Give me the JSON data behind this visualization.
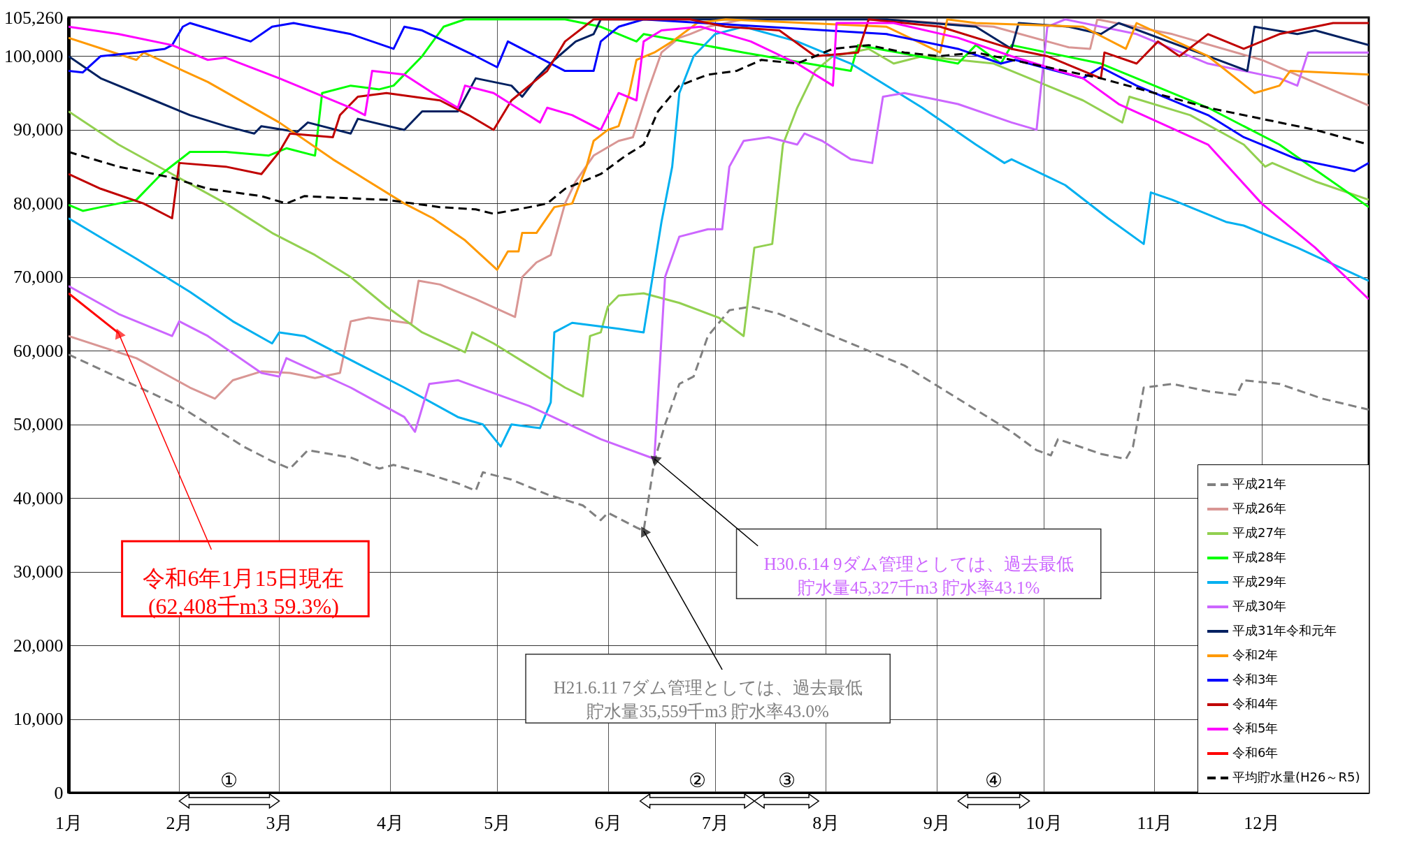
{
  "chart_data": {
    "type": "line",
    "xlim": [
      "--01-01",
      "--12-31"
    ],
    "xticks": [
      {
        "value": "--01-01",
        "label": "1月"
      },
      {
        "value": "--02-01",
        "label": "2月"
      },
      {
        "value": "--03-01",
        "label": "3月"
      },
      {
        "value": "--04-01",
        "label": "4月"
      },
      {
        "value": "--05-01",
        "label": "5月"
      },
      {
        "value": "--06-01",
        "label": "6月"
      },
      {
        "value": "--07-01",
        "label": "7月"
      },
      {
        "value": "--08-01",
        "label": "8月"
      },
      {
        "value": "--09-01",
        "label": "9月"
      },
      {
        "value": "--10-01",
        "label": "10月"
      },
      {
        "value": "--11-01",
        "label": "11月"
      },
      {
        "value": "--12-01",
        "label": "12月"
      }
    ],
    "ylim": [
      0,
      105260
    ],
    "yticks": [
      0,
      {
        "value": 10000,
        "label": "10,000"
      },
      {
        "value": 20000,
        "label": "20,000"
      },
      {
        "value": 30000,
        "label": "30,000"
      },
      {
        "value": 40000,
        "label": "40,000"
      },
      {
        "value": 50000,
        "label": "50,000"
      },
      {
        "value": 60000,
        "label": "60,000"
      },
      {
        "value": 70000,
        "label": "70,000"
      },
      {
        "value": 80000,
        "label": "80,000"
      },
      {
        "value": 90000,
        "label": "90,000"
      },
      {
        "value": 100000,
        "label": "100,000"
      },
      {
        "value": 105260,
        "label": "105,260"
      }
    ],
    "grid": true,
    "legend": "bottom right",
    "series": [
      {
        "name": "平成21年",
        "color": "#808080",
        "line_style": "dashed",
        "x": [
          "--01-01",
          "--02-01",
          "--02-19",
          "--02-27",
          "--03-04",
          "--03-09",
          "--03-21",
          "--03-29",
          "--04-02",
          "--04-10",
          "--04-20",
          "--04-25",
          "--04-27",
          "--05-05",
          "--05-15",
          "--05-25",
          "--05-30",
          "--06-01",
          "--06-09",
          "--06-11",
          "--06-14",
          "--06-17",
          "--06-21",
          "--06-25",
          "--06-29",
          "--07-05",
          "--07-11",
          "--07-19",
          "--07-24",
          "--08-03",
          "--08-13",
          "--08-23",
          "--09-02",
          "--09-12",
          "--09-22",
          "--09-29",
          "--10-03",
          "--10-05",
          "--10-17",
          "--10-24",
          "--10-26",
          "--10-29",
          "--11-06",
          "--11-16",
          "--11-24",
          "--11-26",
          "--12-06",
          "--12-18",
          "--12-31"
        ],
        "values": [
          59500,
          52500,
          47000,
          45000,
          44000,
          46500,
          45500,
          44000,
          44500,
          43500,
          42000,
          41000,
          43500,
          42500,
          40500,
          39000,
          37000,
          38000,
          36000,
          35559,
          45000,
          50000,
          55500,
          56500,
          62000,
          65500,
          66000,
          65000,
          64000,
          62000,
          60000,
          58000,
          55000,
          52000,
          49000,
          46500,
          45800,
          48000,
          46000,
          45300,
          47000,
          55000,
          55500,
          54500,
          54000,
          56000,
          55500,
          53500,
          52000
        ]
      },
      {
        "name": "平成26年",
        "color": "#d99694",
        "x": [
          "--01-01",
          "--01-20",
          "--02-04",
          "--02-11",
          "--02-16",
          "--02-24",
          "--03-04",
          "--03-11",
          "--03-18",
          "--03-21",
          "--03-26",
          "--04-07",
          "--04-09",
          "--04-15",
          "--04-25",
          "--05-06",
          "--05-08",
          "--05-12",
          "--05-16",
          "--05-20",
          "--05-23",
          "--05-28",
          "--06-04",
          "--06-08",
          "--06-12",
          "--06-16",
          "--06-21",
          "--06-24",
          "--06-29",
          "--07-09",
          "--08-18",
          "--09-17",
          "--10-08",
          "--10-14",
          "--10-16",
          "--11-06",
          "--12-01",
          "--12-31"
        ],
        "values": [
          62000,
          59000,
          55000,
          53500,
          56000,
          57200,
          57000,
          56300,
          57000,
          64000,
          64500,
          63700,
          69500,
          69000,
          67000,
          64600,
          70000,
          72000,
          73000,
          80000,
          83000,
          86500,
          88500,
          89000,
          95000,
          100500,
          102500,
          103000,
          104000,
          105000,
          105000,
          104000,
          101200,
          101000,
          105000,
          103000,
          99500,
          93300
        ]
      },
      {
        "name": "平成27年",
        "color": "#92d050",
        "x": [
          "--01-01",
          "--01-15",
          "--01-30",
          "--02-14",
          "--02-27",
          "--03-11",
          "--03-21",
          "--03-31",
          "--04-10",
          "--04-22",
          "--04-24",
          "--04-30",
          "--05-10",
          "--05-20",
          "--05-25",
          "--05-27",
          "--05-30",
          "--06-01",
          "--06-04",
          "--06-11",
          "--06-21",
          "--07-02",
          "--07-09",
          "--07-12",
          "--07-17",
          "--07-20",
          "--07-24",
          "--07-29",
          "--08-03",
          "--08-13",
          "--08-20",
          "--08-28",
          "--09-17",
          "--09-27",
          "--10-12",
          "--10-23",
          "--10-25",
          "--11-11",
          "--11-26",
          "--12-02",
          "--12-04",
          "--12-16",
          "--12-31"
        ],
        "values": [
          92500,
          88000,
          84000,
          80000,
          76000,
          73000,
          70000,
          66000,
          62500,
          59800,
          62500,
          61000,
          58000,
          55000,
          53800,
          62000,
          62500,
          66000,
          67500,
          67800,
          66500,
          64500,
          62000,
          74000,
          74500,
          88000,
          93000,
          98000,
          100000,
          101000,
          99000,
          100000,
          99000,
          97000,
          94000,
          91000,
          94500,
          92000,
          88000,
          85000,
          85500,
          83000,
          80500
        ]
      },
      {
        "name": "平成28年",
        "color": "#00ff00",
        "x": [
          "--01-01",
          "--01-05",
          "--01-10",
          "--01-20",
          "--01-27",
          "--02-04",
          "--02-14",
          "--02-26",
          "--03-03",
          "--03-11",
          "--03-13",
          "--03-21",
          "--03-29",
          "--04-02",
          "--04-10",
          "--04-16",
          "--04-22",
          "--05-20",
          "--05-30",
          "--06-09",
          "--06-11",
          "--07-09",
          "--08-08",
          "--08-10",
          "--09-07",
          "--09-12",
          "--09-19",
          "--09-22",
          "--10-17",
          "--10-27",
          "--11-16",
          "--12-06",
          "--12-31"
        ],
        "values": [
          79800,
          79000,
          79500,
          80500,
          84000,
          87000,
          87000,
          86500,
          87500,
          86500,
          95000,
          96000,
          95500,
          96000,
          100000,
          104000,
          105000,
          105000,
          104000,
          102000,
          103000,
          100500,
          98000,
          101500,
          99000,
          101500,
          99000,
          101500,
          99000,
          97000,
          93000,
          88000,
          79500
        ]
      },
      {
        "name": "平成29年",
        "color": "#00b0f0",
        "x": [
          "--01-01",
          "--01-20",
          "--02-04",
          "--02-16",
          "--02-27",
          "--03-01",
          "--03-08",
          "--03-18",
          "--04-05",
          "--04-20",
          "--04-27",
          "--05-02",
          "--05-05",
          "--05-13",
          "--05-16",
          "--05-17",
          "--05-22",
          "--06-04",
          "--06-11",
          "--06-16",
          "--06-19",
          "--06-21",
          "--06-25",
          "--07-01",
          "--07-09",
          "--07-24",
          "--08-08",
          "--08-28",
          "--09-12",
          "--09-20",
          "--09-22",
          "--10-07",
          "--10-19",
          "--10-29",
          "--10-31",
          "--11-06",
          "--11-21",
          "--11-26",
          "--12-11",
          "--12-31"
        ],
        "values": [
          78000,
          72500,
          68000,
          64000,
          61000,
          62500,
          62000,
          59500,
          55000,
          51000,
          50000,
          47000,
          50000,
          49500,
          53000,
          62500,
          63800,
          63000,
          62500,
          77500,
          85000,
          95000,
          100000,
          103000,
          104000,
          102000,
          99000,
          93000,
          88000,
          85500,
          86000,
          82500,
          78000,
          74500,
          81500,
          80500,
          77500,
          77000,
          74000,
          69500
        ]
      },
      {
        "name": "平成30年",
        "color": "#cc66ff",
        "x": [
          "--01-01",
          "--01-15",
          "--01-30",
          "--02-01",
          "--02-09",
          "--02-24",
          "--03-01",
          "--03-03",
          "--03-21",
          "--04-05",
          "--04-08",
          "--04-12",
          "--04-20",
          "--05-10",
          "--05-30",
          "--06-14",
          "--06-17",
          "--06-21",
          "--06-29",
          "--07-03",
          "--07-05",
          "--07-09",
          "--07-16",
          "--07-24",
          "--07-26",
          "--07-31",
          "--08-08",
          "--08-14",
          "--08-17",
          "--08-23",
          "--09-07",
          "--09-22",
          "--09-29",
          "--10-02",
          "--10-07",
          "--10-27",
          "--11-16",
          "--12-06",
          "--12-11",
          "--12-14",
          "--12-31"
        ],
        "values": [
          68800,
          65000,
          62000,
          64000,
          62000,
          57000,
          56500,
          59000,
          55000,
          51000,
          49000,
          55500,
          56000,
          52500,
          48000,
          45327,
          70000,
          75500,
          76500,
          76500,
          85000,
          88500,
          89000,
          88000,
          89500,
          88500,
          86000,
          85500,
          94500,
          95000,
          93500,
          91000,
          90000,
          104000,
          105000,
          103000,
          99000,
          97000,
          96000,
          100500,
          100500
        ]
      },
      {
        "name": "平成31年令和元年",
        "color": "#002060",
        "x": [
          "--01-01",
          "--01-10",
          "--01-25",
          "--02-04",
          "--02-14",
          "--02-22",
          "--02-24",
          "--03-06",
          "--03-09",
          "--03-21",
          "--03-23",
          "--04-05",
          "--04-10",
          "--04-20",
          "--04-25",
          "--04-30",
          "--05-05",
          "--05-08",
          "--05-12",
          "--05-17",
          "--05-23",
          "--05-28",
          "--05-30",
          "--08-18",
          "--09-12",
          "--09-22",
          "--09-24",
          "--10-08",
          "--10-17",
          "--10-22",
          "--11-16",
          "--11-27",
          "--11-29",
          "--12-11",
          "--12-16",
          "--12-31"
        ],
        "values": [
          100000,
          97000,
          94000,
          92000,
          90500,
          89500,
          90500,
          89700,
          91000,
          89500,
          91500,
          90000,
          92500,
          92500,
          97000,
          96500,
          96000,
          94500,
          97000,
          99500,
          102000,
          103000,
          105000,
          105000,
          104000,
          101000,
          104500,
          104000,
          103000,
          104500,
          100000,
          98000,
          104000,
          103000,
          103500,
          101500
        ]
      },
      {
        "name": "令和2年",
        "color": "#ff9900",
        "x": [
          "--01-01",
          "--01-20",
          "--01-22",
          "--02-09",
          "--03-01",
          "--03-16",
          "--04-05",
          "--04-13",
          "--04-22",
          "--05-01",
          "--05-04",
          "--05-07",
          "--05-08",
          "--05-12",
          "--05-17",
          "--05-22",
          "--05-26",
          "--05-28",
          "--06-01",
          "--06-04",
          "--06-07",
          "--06-09",
          "--06-14",
          "--06-19",
          "--06-26",
          "--07-04",
          "--08-18",
          "--09-02",
          "--09-04",
          "--09-12",
          "--10-12",
          "--10-24",
          "--10-27",
          "--11-16",
          "--11-29",
          "--12-06",
          "--12-09",
          "--12-31"
        ],
        "values": [
          102500,
          99500,
          100500,
          96500,
          91000,
          86000,
          80000,
          78000,
          75000,
          71000,
          73500,
          73500,
          76000,
          76000,
          79500,
          80000,
          85000,
          88500,
          90000,
          90500,
          95000,
          99500,
          100500,
          102000,
          104500,
          105000,
          104000,
          100500,
          105000,
          104500,
          104000,
          101000,
          104500,
          100000,
          95000,
          96000,
          98000,
          97500
        ]
      },
      {
        "name": "令和3年",
        "color": "#0000ff",
        "x": [
          "--01-01",
          "--01-05",
          "--01-10",
          "--01-20",
          "--01-28",
          "--01-30",
          "--02-02",
          "--02-04",
          "--02-21",
          "--02-27",
          "--03-05",
          "--03-21",
          "--04-02",
          "--04-05",
          "--04-10",
          "--04-25",
          "--05-01",
          "--05-04",
          "--05-20",
          "--05-28",
          "--05-30",
          "--06-04",
          "--06-11",
          "--08-18",
          "--09-07",
          "--09-19",
          "--09-23",
          "--10-12",
          "--10-17",
          "--10-27",
          "--11-16",
          "--11-26",
          "--12-11",
          "--12-27",
          "--12-31"
        ],
        "values": [
          98000,
          97800,
          100000,
          100500,
          101000,
          101500,
          104000,
          104500,
          102000,
          104000,
          104500,
          103000,
          101000,
          104000,
          103500,
          100000,
          98500,
          102000,
          98000,
          98000,
          102000,
          104000,
          105000,
          103000,
          101000,
          99000,
          99500,
          97000,
          98500,
          96000,
          92000,
          89000,
          86000,
          84400,
          85500
        ]
      },
      {
        "name": "令和4年",
        "color": "#c00000",
        "x": [
          "--01-01",
          "--01-10",
          "--01-22",
          "--01-30",
          "--02-01",
          "--02-14",
          "--02-24",
          "--03-01",
          "--03-04",
          "--03-16",
          "--03-18",
          "--03-23",
          "--03-31",
          "--04-15",
          "--04-23",
          "--04-30",
          "--05-05",
          "--05-15",
          "--05-20",
          "--05-28",
          "--06-24",
          "--07-04",
          "--07-19",
          "--07-29",
          "--08-10",
          "--08-13",
          "--09-02",
          "--09-22",
          "--10-02",
          "--10-17",
          "--10-18",
          "--10-27",
          "--11-02",
          "--11-08",
          "--11-16",
          "--11-26",
          "--12-06",
          "--12-21",
          "--12-31"
        ],
        "values": [
          84000,
          82000,
          80000,
          78000,
          85500,
          85000,
          84000,
          87000,
          89500,
          89000,
          92000,
          94500,
          95000,
          94000,
          92000,
          90000,
          94000,
          98000,
          102000,
          105000,
          105000,
          104000,
          103500,
          100000,
          100500,
          105000,
          104000,
          101000,
          100000,
          97000,
          100500,
          99000,
          102000,
          100000,
          103000,
          101000,
          103000,
          104500,
          104500
        ]
      },
      {
        "name": "令和5年",
        "color": "#ff00ff",
        "x": [
          "--01-01",
          "--01-15",
          "--01-30",
          "--02-09",
          "--02-14",
          "--03-01",
          "--03-21",
          "--03-25",
          "--03-27",
          "--04-05",
          "--04-13",
          "--04-20",
          "--04-22",
          "--04-30",
          "--05-13",
          "--05-15",
          "--05-22",
          "--05-30",
          "--06-01",
          "--06-04",
          "--06-09",
          "--06-11",
          "--06-16",
          "--06-27",
          "--07-11",
          "--07-24",
          "--08-03",
          "--08-04",
          "--08-20",
          "--09-07",
          "--09-22",
          "--10-12",
          "--10-22",
          "--11-16",
          "--12-01",
          "--12-16",
          "--12-31"
        ],
        "values": [
          104000,
          103000,
          101500,
          99500,
          99800,
          97000,
          93000,
          92000,
          98000,
          97500,
          95000,
          93000,
          96000,
          95000,
          91000,
          93000,
          92000,
          90000,
          92000,
          95000,
          94000,
          102000,
          103500,
          104000,
          102000,
          99000,
          96000,
          104500,
          104500,
          102500,
          100000,
          97000,
          93500,
          88000,
          80000,
          74000,
          67000
        ]
      },
      {
        "name": "令和6年",
        "color": "#ff0000",
        "x": [
          "--01-01",
          "--01-15"
        ],
        "values": [
          67800,
          62408
        ]
      },
      {
        "name": "平均貯水量(H26～R5)",
        "color": "#000000",
        "line_style": "dashed",
        "x": [
          "--01-01",
          "--01-15",
          "--01-30",
          "--02-09",
          "--02-24",
          "--03-03",
          "--03-08",
          "--03-16",
          "--03-31",
          "--04-15",
          "--04-25",
          "--04-30",
          "--05-10",
          "--05-15",
          "--05-20",
          "--05-30",
          "--06-06",
          "--06-11",
          "--06-15",
          "--06-21",
          "--06-29",
          "--07-07",
          "--07-14",
          "--07-24",
          "--08-03",
          "--08-13",
          "--08-23",
          "--09-02",
          "--09-12",
          "--09-22",
          "--10-02",
          "--10-17",
          "--11-01",
          "--11-16",
          "--12-01",
          "--12-16",
          "--12-31"
        ],
        "values": [
          87000,
          85000,
          83500,
          82000,
          81000,
          80000,
          81000,
          80800,
          80500,
          79500,
          79200,
          78600,
          79500,
          80000,
          82000,
          84000,
          86500,
          88000,
          92500,
          96000,
          97500,
          98000,
          99500,
          99000,
          101000,
          101500,
          100500,
          100000,
          100500,
          99500,
          98500,
          97000,
          95000,
          93000,
          91500,
          90000,
          88000
        ]
      }
    ],
    "annotations": [
      {
        "text": "令和6年1月15日現在\n(62,408千m3  59.3%)",
        "x": "--01-15",
        "y": 62408
      },
      {
        "text": "H30.6.14  9ダム管理としては、過去最低貯水量45,327千m3  貯水率43.1%",
        "x": "--06-14",
        "y": 45327
      },
      {
        "text": "H21.6.11  7ダム管理としては、過去最低貯水量35,559千m3  貯水率43.0%",
        "x": "--06-11",
        "y": 35559
      },
      "①",
      "②",
      "③",
      "④"
    ]
  }
}
